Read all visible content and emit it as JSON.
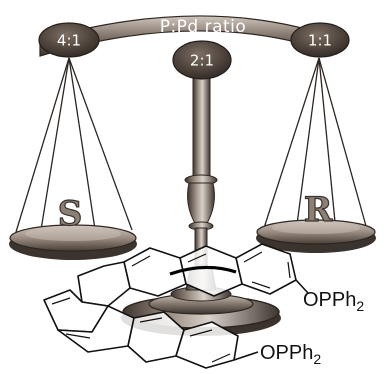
{
  "beam": {
    "label": "P:Pd ratio"
  },
  "ratios": {
    "left": "4:1",
    "center": "2:1",
    "right": "1:1"
  },
  "pans": {
    "left_letter": "S",
    "right_letter": "R"
  },
  "molecule": {
    "substituent_top": "OPPh",
    "substituent_top_sub": "2",
    "substituent_bottom": "OPPh",
    "substituent_bottom_sub": "2"
  },
  "colors": {
    "metal_dark": "#3b332d",
    "metal_mid": "#6e6259",
    "metal_light": "#b2a79e",
    "badge": "#4a3f37",
    "ink": "#111111"
  }
}
